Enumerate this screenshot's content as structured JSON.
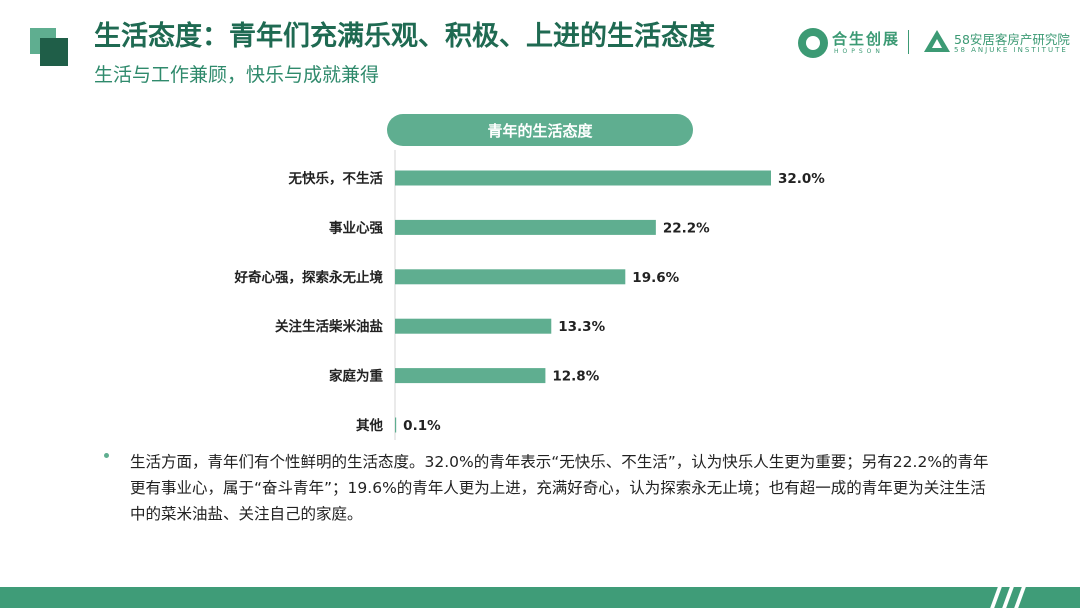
{
  "header": {
    "title": "生活态度：青年们充满乐观、积极、上进的生活态度",
    "subtitle": "生活与工作兼顾，快乐与成就兼得"
  },
  "brands": {
    "brand1_name": "合生创展",
    "brand1_en": "HOPSON",
    "brand2_name": "58安居客房产研究院",
    "brand2_en": "58 ANJUKE INSTITUTE"
  },
  "colors": {
    "accent": "#3c9a74",
    "bar": "#5fae90",
    "title": "#1f6a52"
  },
  "chart_data": {
    "type": "bar",
    "orientation": "horizontal",
    "title": "青年的生活态度",
    "categories": [
      "无快乐，不生活",
      "事业心强",
      "好奇心强，探索永无止境",
      "关注生活柴米油盐",
      "家庭为重",
      "其他"
    ],
    "values": [
      32.0,
      22.2,
      19.6,
      13.3,
      12.8,
      0.1
    ],
    "value_labels": [
      "32.0%",
      "22.2%",
      "19.6%",
      "13.3%",
      "12.8%",
      "0.1%"
    ],
    "unit": "%",
    "xlim": [
      0,
      32
    ],
    "grid": false,
    "legend": "none"
  },
  "note": {
    "text": "生活方面，青年们有个性鲜明的生活态度。32.0%的青年表示“无快乐、不生活”，认为快乐人生更为重要；另有22.2%的青年更有事业心，属于“奋斗青年”；19.6%的青年人更为上进，充满好奇心，认为探索永无止境；也有超一成的青年更为关注生活中的菜米油盐、关注自己的家庭。"
  }
}
